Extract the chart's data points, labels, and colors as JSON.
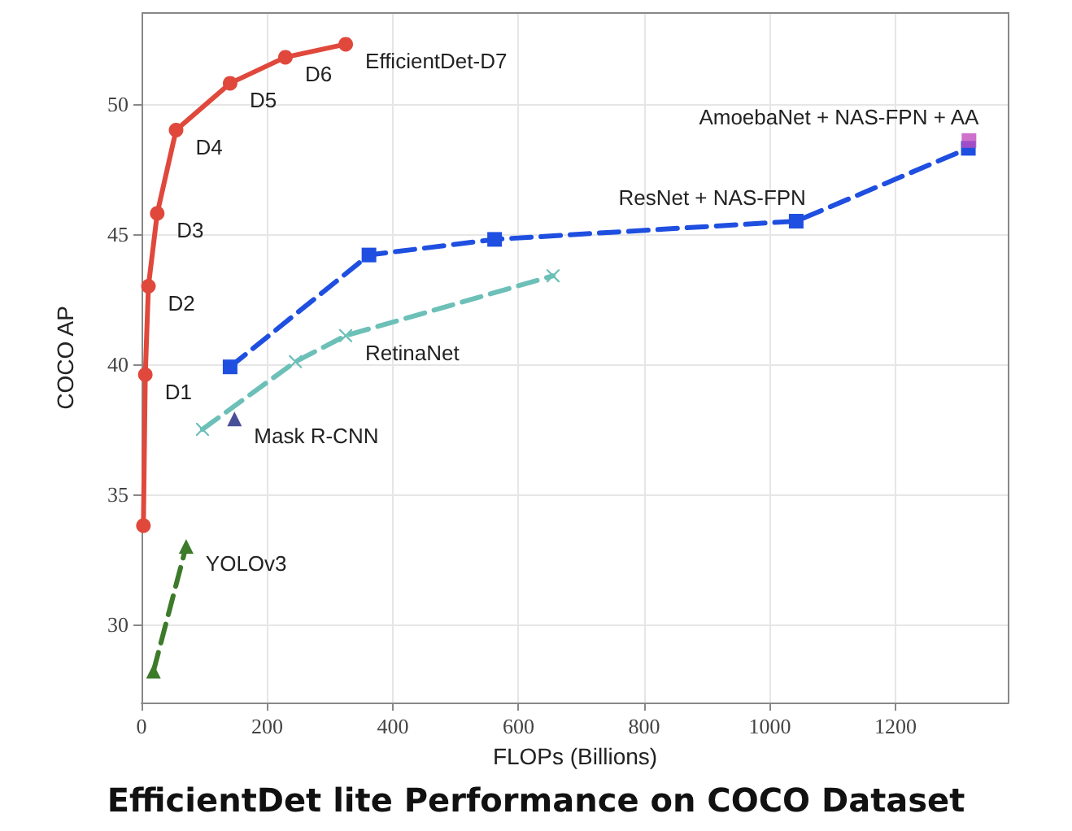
{
  "chart_data": {
    "type": "line",
    "title": "EfficientDet lite Performance on COCO Dataset",
    "xlabel": "FLOPs (Billions)",
    "ylabel": "COCO AP",
    "xlim": [
      0,
      1380
    ],
    "xticks": [
      0,
      200,
      400,
      600,
      800,
      1000,
      1200
    ],
    "ylim": [
      27,
      53.5
    ],
    "yticks": [
      30,
      35,
      40,
      45,
      50
    ],
    "grid": true,
    "series": [
      {
        "color": "#e0483c",
        "marker": "circle",
        "line_style": "solid",
        "x": [
          3,
          6,
          11,
          25,
          55,
          141,
          229,
          325
        ],
        "values": [
          33.8,
          39.6,
          43.0,
          45.8,
          49.0,
          50.8,
          51.8,
          52.3
        ]
      },
      {
        "color": "#1f4fe0",
        "marker": "square",
        "line_style": "dashed",
        "x": [
          141,
          362,
          562,
          1042,
          1316
        ],
        "values": [
          39.9,
          44.2,
          44.8,
          45.5,
          48.3
        ]
      },
      {
        "color": "#6cc0b8",
        "marker": "cross",
        "line_style": "dashed",
        "x": [
          97,
          245,
          325,
          655
        ],
        "values": [
          37.5,
          40.1,
          41.1,
          43.4
        ]
      },
      {
        "type": "scatter",
        "color": "#1a237e",
        "marker": "triangle",
        "x": [
          148
        ],
        "values": [
          37.9
        ]
      },
      {
        "color": "#3d7a2a",
        "marker": "triangle",
        "line_style": "dashed",
        "x": [
          19,
          71
        ],
        "values": [
          28.2,
          33.0
        ]
      },
      {
        "type": "scatter",
        "color": "#c04ec0",
        "marker": "square",
        "x": [
          1317
        ],
        "values": [
          48.6
        ]
      }
    ],
    "annotations": [
      {
        "text": "D1",
        "x": 6,
        "y": 39.6
      },
      {
        "text": "D2",
        "x": 11,
        "y": 43.0
      },
      {
        "text": "D3",
        "x": 25,
        "y": 45.8
      },
      {
        "text": "D4",
        "x": 55,
        "y": 49.0
      },
      {
        "text": "D5",
        "x": 141,
        "y": 50.8
      },
      {
        "text": "D6",
        "x": 229,
        "y": 51.8
      },
      {
        "text": "EfficientDet-D7",
        "x": 325,
        "y": 52.3
      },
      {
        "text": "RetinaNet",
        "x": 325,
        "y": 41.1
      },
      {
        "text": "Mask R-CNN",
        "x": 148,
        "y": 37.9
      },
      {
        "text": "YOLOv3",
        "x": 71,
        "y": 33.0
      },
      {
        "text": "ResNet + NAS-FPN",
        "x": 1042,
        "y": 45.5
      },
      {
        "text": "AmoebaNet + NAS-FPN + AA",
        "x": 1317,
        "y": 48.6
      }
    ]
  }
}
